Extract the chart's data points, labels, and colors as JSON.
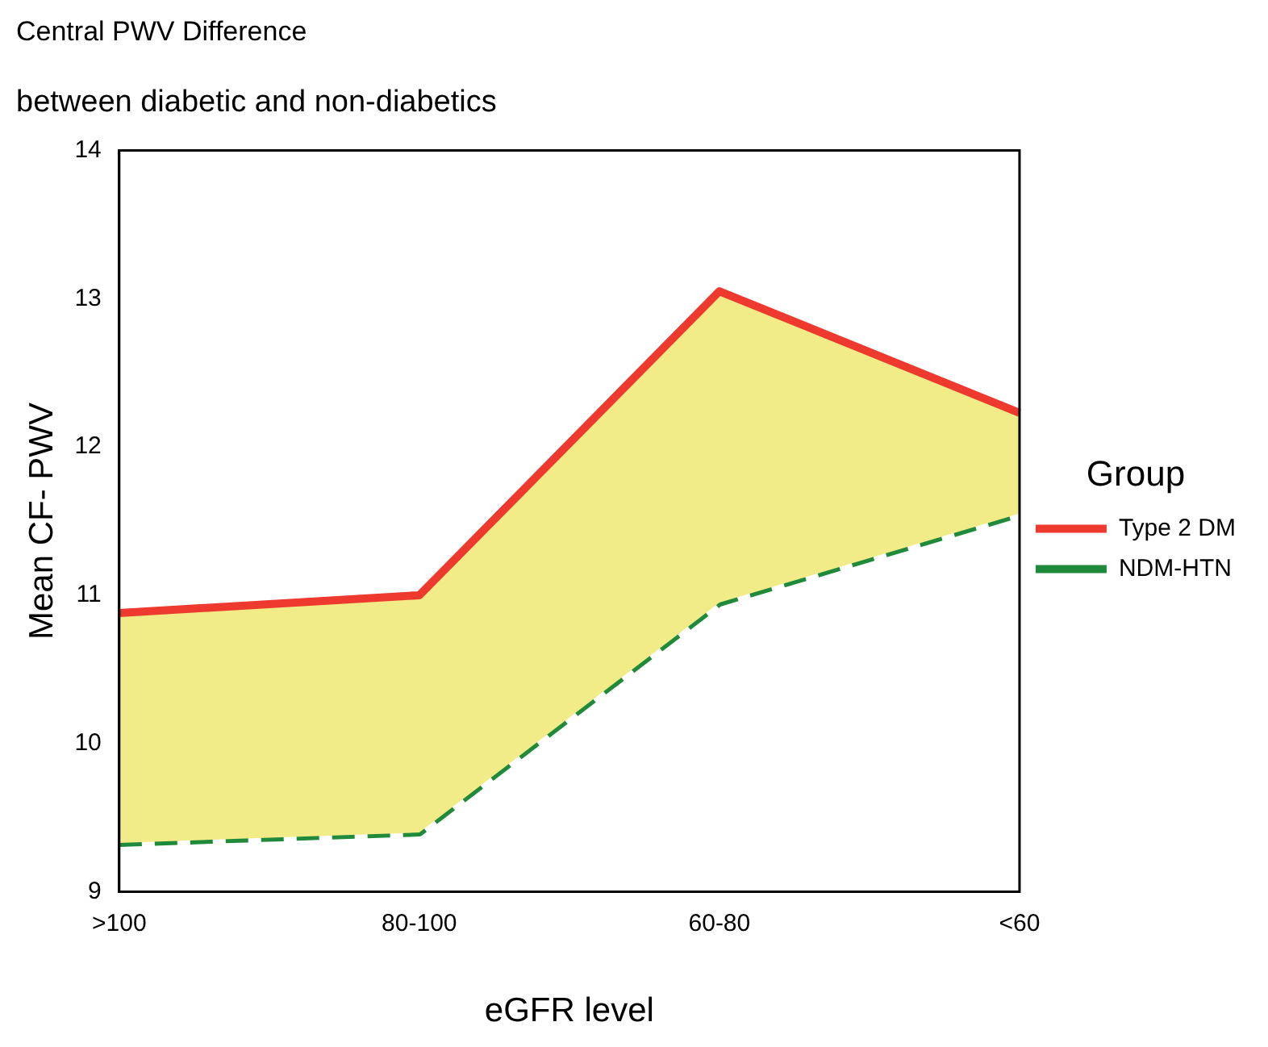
{
  "chart_data": {
    "type": "line",
    "title": "Central PWV Difference",
    "subtitle": "between diabetic and non-diabetics",
    "xlabel": "eGFR level",
    "ylabel": "Mean CF- PWV",
    "legend_title": "Group",
    "categories": [
      ">100",
      "80-100",
      "60-80",
      "<60"
    ],
    "series": [
      {
        "type": "area",
        "name": "Type 2 DM",
        "color": "#ee3a2e",
        "values": [
          10.88,
          11.0,
          13.05,
          12.23
        ],
        "line_style": "solid"
      },
      {
        "name": "NDM-HTN",
        "color": "#1e8a3a",
        "values": [
          9.33,
          9.4,
          10.95,
          11.55
        ],
        "line_style": "dashed"
      }
    ],
    "ylim": [
      9,
      14
    ],
    "yticks": [
      9,
      10,
      11,
      12,
      13,
      14
    ],
    "grid": false,
    "legend": "right",
    "marker": "none"
  }
}
